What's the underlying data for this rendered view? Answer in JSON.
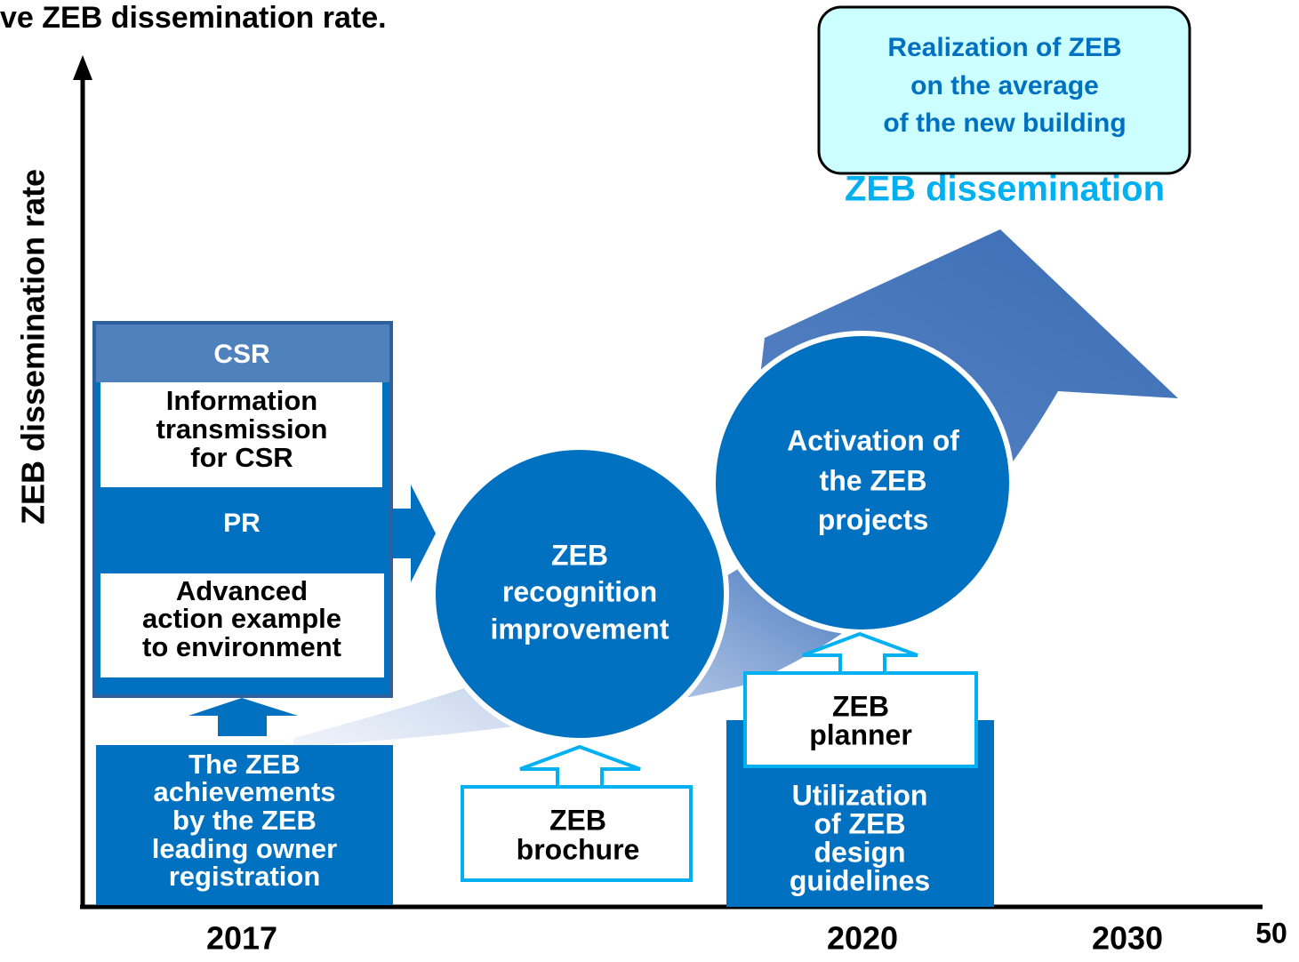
{
  "title": "ve ZEB dissemination rate.",
  "y_axis_label": "ZEB dissemination rate",
  "goal_box": [
    "Realization of ZEB",
    "on the average",
    "of the new building"
  ],
  "arrow_label": "ZEB dissemination",
  "csr_box": {
    "header": "CSR",
    "lines": [
      "Information",
      "transmission",
      "for CSR"
    ]
  },
  "pr_box": {
    "header": "PR",
    "lines": [
      "Advanced",
      "action example",
      "to environment"
    ]
  },
  "owner_box": [
    "The ZEB",
    "achievements",
    "by the ZEB",
    "leading owner",
    "registration"
  ],
  "circles": [
    [
      "ZEB",
      "recognition",
      "improvement"
    ],
    [
      "Activation of",
      "the ZEB",
      "projects"
    ]
  ],
  "brochure_box": [
    "ZEB",
    "brochure"
  ],
  "planner_box": [
    "ZEB",
    "planner"
  ],
  "guidelines_box": [
    "Utilization",
    "of ZEB",
    "design",
    "guidelines"
  ],
  "x_labels": [
    "2017",
    "2020",
    "2030",
    "50"
  ]
}
